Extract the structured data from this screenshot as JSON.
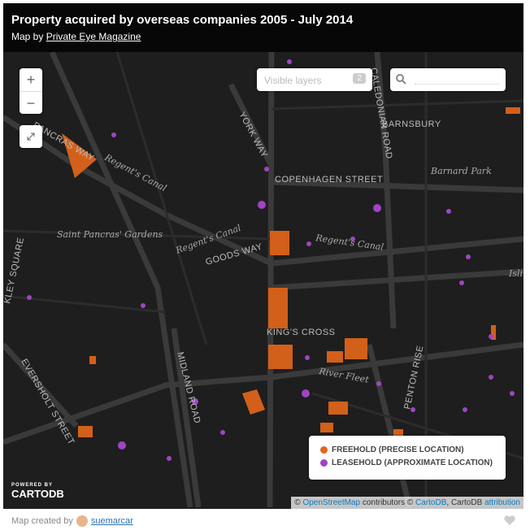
{
  "header": {
    "title": "Property acquired by overseas companies 2005 - July 2014",
    "subtitle_prefix": "Map by",
    "subtitle_link": "Private Eye Magazine"
  },
  "controls": {
    "zoom_in": "+",
    "zoom_out": "−",
    "layers_label": "Visible layers",
    "layers_count": "2"
  },
  "map_labels": [
    "BARNSBURY",
    "Barnard Park",
    "CALEDONIAN ROAD",
    "YORK WAY",
    "COPENHAGEN STREET",
    "Regent's Canal",
    "Regent's Canal",
    "Regent's Canal",
    "Saint Pancras' Gardens",
    "GOODS WAY",
    "PANCRAS WAY",
    "KING'S CROSS",
    "River Fleet",
    "PENTON RISE",
    "MIDLAND ROAD",
    "EVERSHOLT STREET",
    "KLEY SQUARE",
    "Islin"
  ],
  "legend": [
    {
      "label": "FREEHOLD (PRECISE LOCATION)",
      "color": "#e0661b"
    },
    {
      "label": "LEASEHOLD (APPROXIMATE LOCATION)",
      "color": "#a044c4"
    }
  ],
  "branding": {
    "powered_by": "POWERED BY",
    "name": "CARTODB"
  },
  "attribution": {
    "prefix": "©",
    "osm": "OpenStreetMap",
    "middle": "contributors ©",
    "cartodb": "CartoDB",
    "rest": ", CartoDB",
    "link": "attribution"
  },
  "footer": {
    "prefix": "Map created by",
    "user": "suemarcar"
  }
}
